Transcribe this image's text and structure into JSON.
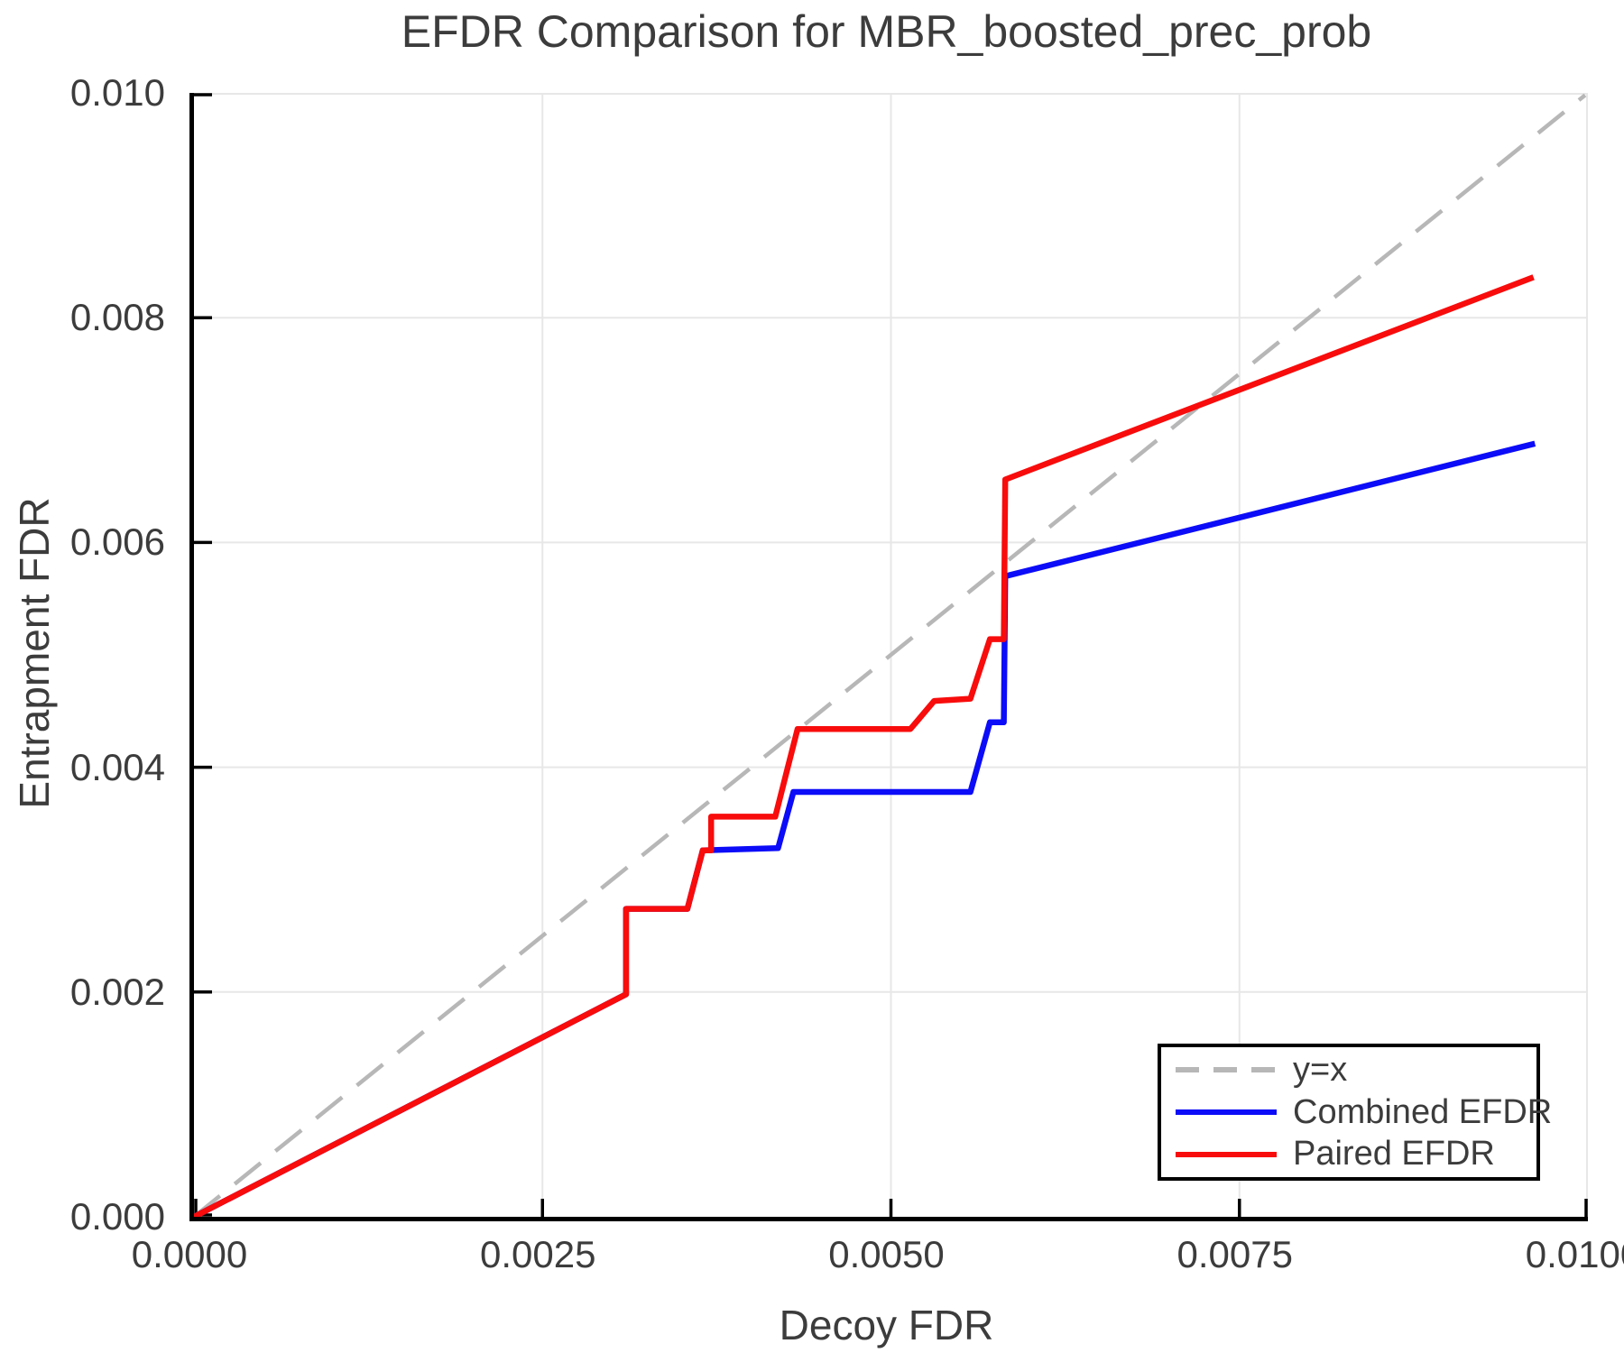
{
  "title": "EFDR Comparison for MBR_boosted_prec_prob",
  "colors": {
    "background": "#ffffff",
    "text": "#3c3c3c",
    "spine": "#000000",
    "grid": "#e7e7e7",
    "identity_line": "#b7b7b7",
    "combined_efdr": "#0c0cf8",
    "paired_efdr": "#f80c0c"
  },
  "chart_data": {
    "type": "line",
    "title": "EFDR Comparison for MBR_boosted_prec_prob",
    "xlabel": "Decoy FDR",
    "ylabel": "Entrapment FDR",
    "xlim": [
      0,
      0.01
    ],
    "ylim": [
      0,
      0.01
    ],
    "grid": true,
    "x_ticks": {
      "values": [
        0,
        0.0025,
        0.005,
        0.0075,
        0.01
      ],
      "labels": [
        "0.0000",
        "0.0025",
        "0.0050",
        "0.0075",
        "0.0100"
      ]
    },
    "y_ticks": {
      "values": [
        0,
        0.002,
        0.004,
        0.006,
        0.008,
        0.01
      ],
      "labels": [
        "0.000",
        "0.002",
        "0.004",
        "0.006",
        "0.008",
        "0.010"
      ]
    },
    "legend": {
      "position": "lower right",
      "entries": [
        {
          "label": "y=x",
          "color": "#b7b7b7",
          "dash": true
        },
        {
          "label": "Combined EFDR",
          "color": "#0c0cf8",
          "dash": false
        },
        {
          "label": "Paired EFDR",
          "color": "#f80c0c",
          "dash": false
        }
      ]
    },
    "series": [
      {
        "name": "y=x",
        "color": "#b7b7b7",
        "width": 4.5,
        "dash": [
          37,
          21
        ],
        "points": [
          [
            0,
            0
          ],
          [
            0.00998,
            0.00998
          ]
        ]
      },
      {
        "name": "Combined EFDR",
        "color": "#0c0cf8",
        "width": 6.5,
        "dash": null,
        "points": [
          [
            0,
            0
          ],
          [
            0.0031,
            0.00198
          ],
          [
            0.0031,
            0.00274
          ],
          [
            0.00354,
            0.00274
          ],
          [
            0.00365,
            0.00326
          ],
          [
            0.00419,
            0.00328
          ],
          [
            0.0043,
            0.00378
          ],
          [
            0.00557,
            0.00378
          ],
          [
            0.00571,
            0.0044
          ],
          [
            0.00581,
            0.0044
          ],
          [
            0.00582,
            0.0057
          ],
          [
            0.00962,
            0.00688
          ]
        ]
      },
      {
        "name": "Paired EFDR",
        "color": "#f80c0c",
        "width": 6.5,
        "dash": null,
        "points": [
          [
            0,
            0
          ],
          [
            0.0031,
            0.00198
          ],
          [
            0.0031,
            0.00274
          ],
          [
            0.00354,
            0.00274
          ],
          [
            0.00365,
            0.00326
          ],
          [
            0.00371,
            0.00326
          ],
          [
            0.00371,
            0.00356
          ],
          [
            0.00417,
            0.00356
          ],
          [
            0.00426,
            0.004
          ],
          [
            0.00433,
            0.00434
          ],
          [
            0.00514,
            0.00434
          ],
          [
            0.00531,
            0.00459
          ],
          [
            0.00557,
            0.00461
          ],
          [
            0.00571,
            0.00514
          ],
          [
            0.00581,
            0.00514
          ],
          [
            0.00582,
            0.00656
          ],
          [
            0.00961,
            0.00836
          ]
        ]
      }
    ]
  }
}
